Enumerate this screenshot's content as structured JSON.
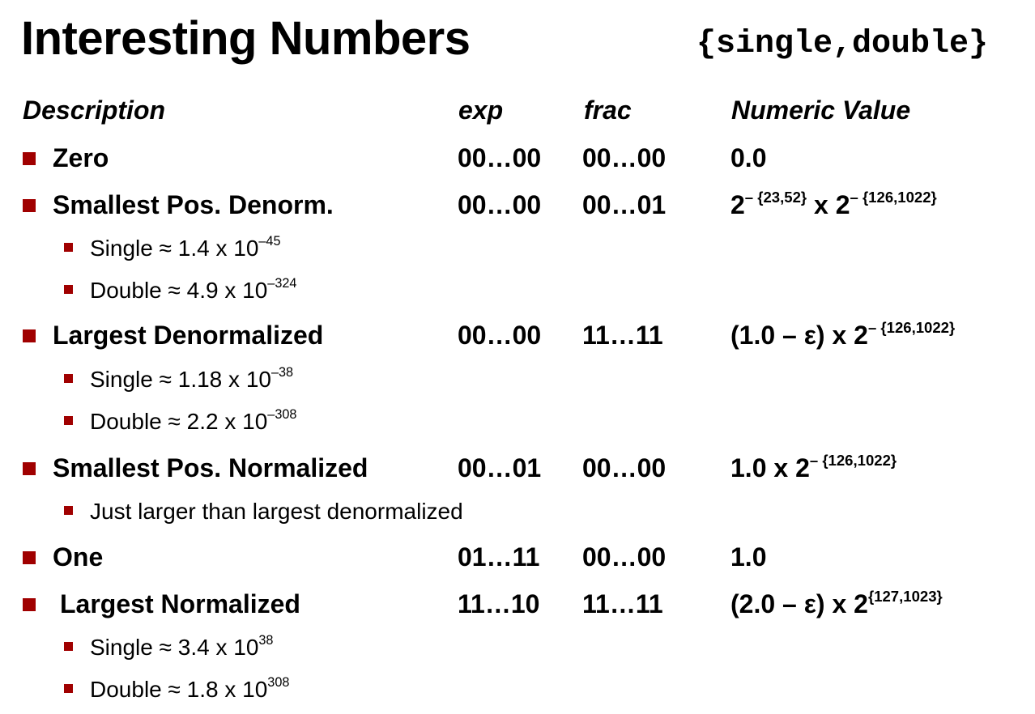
{
  "title": "Interesting Numbers",
  "subtitle": "{single,double}",
  "headers": {
    "description": "Description",
    "exp": "exp",
    "frac": "frac",
    "value": "Numeric Value"
  },
  "rows": [
    {
      "desc": "Zero",
      "exp": "00…00",
      "frac": "00…00",
      "value_base": "0.0",
      "value_sup": ""
    },
    {
      "desc": "Smallest Pos. Denorm.",
      "exp": "00…00",
      "frac": "00…01",
      "value_base": "2",
      "value_sup": "– {23,52}",
      "value_mid": " x 2",
      "value_sup2": "– {126,1022}",
      "subs": [
        {
          "text": "Single ≈ 1.4 x 10",
          "sup": "–45"
        },
        {
          "text": "Double ≈ 4.9 x 10",
          "sup": "–324"
        }
      ]
    },
    {
      "desc": "Largest Denormalized",
      "exp": "00…00",
      "frac": "11…11",
      "value_base": "(1.0 – ε) x 2",
      "value_sup": "– {126,1022}",
      "subs": [
        {
          "text": "Single ≈ 1.18 x 10",
          "sup": "–38"
        },
        {
          "text": "Double ≈ 2.2 x 10",
          "sup": "–308"
        }
      ]
    },
    {
      "desc": "Smallest Pos. Normalized",
      "exp": "00…01",
      "frac": "00…00",
      "value_base": "1.0 x 2",
      "value_sup": "– {126,1022}",
      "subs": [
        {
          "text": "Just larger than largest denormalized",
          "sup": ""
        }
      ]
    },
    {
      "desc": "One",
      "exp": "01…11",
      "frac": "00…00",
      "value_base": "1.0",
      "value_sup": ""
    },
    {
      "desc": "Largest Normalized",
      "exp": "11…10",
      "frac": "11…11",
      "value_base": "(2.0 – ε) x 2",
      "value_sup": "{127,1023}",
      "subs": [
        {
          "text": "Single ≈ 3.4 x 10",
          "sup": "38"
        },
        {
          "text": "Double ≈ 1.8 x 10",
          "sup": "308"
        }
      ]
    }
  ],
  "colors": {
    "bullet": "#a00000",
    "text": "#000000",
    "background": "#ffffff"
  }
}
